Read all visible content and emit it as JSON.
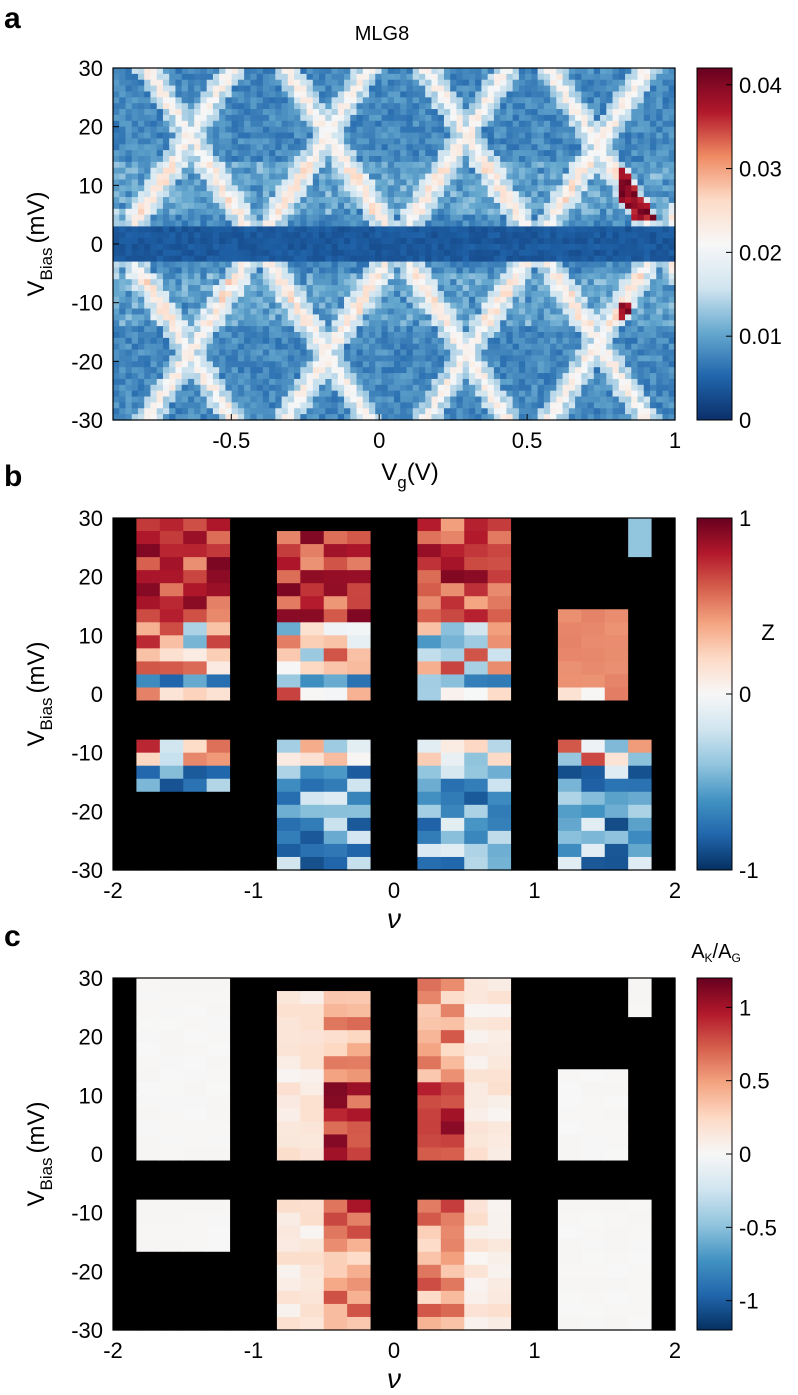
{
  "chart_data": [
    {
      "panel": "a",
      "type": "heatmap",
      "title": "MLG8",
      "xlabel_main": "V",
      "xlabel_sub": "g",
      "xlabel_unit": "(V)",
      "ylabel_main": "V",
      "ylabel_sub": "Bias",
      "ylabel_unit": "(mV)",
      "xlim": [
        -0.9,
        1.0
      ],
      "ylim": [
        -30,
        30
      ],
      "xticks": [
        -0.5,
        0,
        0.5,
        1
      ],
      "xtick_labels": [
        "-0.5",
        "0",
        "0.5",
        "1"
      ],
      "yticks": [
        30,
        20,
        10,
        0,
        -10,
        -20,
        -30
      ],
      "ytick_labels": [
        "30",
        "20",
        "10",
        "0",
        "-10",
        "-20",
        "-30"
      ],
      "colorbar": {
        "range": [
          0,
          0.042
        ],
        "ticks": [
          0.04,
          0.03,
          0.02,
          0.01,
          0
        ],
        "tick_labels": [
          "0.04",
          "0.03",
          "0.02",
          "0.01",
          "0"
        ],
        "colormap": [
          "#0b2f6b",
          "#2166ac",
          "#67a9cf",
          "#d1e5f0",
          "#f7f7f7",
          "#fddbc7",
          "#ef8a62",
          "#b2182b",
          "#67001f"
        ]
      },
      "features": {
        "charge_transition_vg": [
          -0.87,
          -0.41,
          0.06,
          0.53,
          0.95
        ],
        "gap_half_width_mV": 3,
        "background_value": 0.008,
        "edge_value": 0.02,
        "hotspot_value": 0.042
      }
    },
    {
      "panel": "b",
      "type": "heatmap",
      "xlabel": "ν",
      "ylabel_main": "V",
      "ylabel_sub": "Bias",
      "ylabel_unit": "(mV)",
      "xlim": [
        -2,
        2
      ],
      "ylim": [
        -30,
        30
      ],
      "xticks": [
        -2,
        -1,
        0,
        1,
        2
      ],
      "xtick_labels": [
        "-2",
        "-1",
        "0",
        "1",
        "2"
      ],
      "yticks": [
        30,
        20,
        10,
        0,
        -10,
        -20,
        -30
      ],
      "ytick_labels": [
        "30",
        "20",
        "10",
        "0",
        "-10",
        "-20",
        "-30"
      ],
      "colorbar": {
        "label": "Z",
        "range": [
          -1,
          1
        ],
        "ticks": [
          1,
          0,
          -1
        ],
        "tick_labels": [
          "1",
          "0",
          "-1"
        ],
        "colormap": [
          "#053061",
          "#2166ac",
          "#4393c3",
          "#92c5de",
          "#d1e5f0",
          "#f7f7f7",
          "#fddbc7",
          "#f4a582",
          "#d6604d",
          "#b2182b",
          "#67001f"
        ]
      },
      "grid_columns": 24,
      "grid_rows": 27,
      "nan_color": "#000000",
      "regions": [
        {
          "x": [
            -1.85,
            -1.15
          ],
          "y": [
            30,
            0
          ]
        },
        {
          "x": [
            -1.85,
            -1.15
          ],
          "y": [
            -8,
            -17
          ]
        },
        {
          "x": [
            -0.85,
            -0.15
          ],
          "y": [
            28,
            0
          ]
        },
        {
          "x": [
            -0.85,
            -0.15
          ],
          "y": [
            -8,
            -30
          ]
        },
        {
          "x": [
            0.15,
            0.85
          ],
          "y": [
            30,
            0
          ]
        },
        {
          "x": [
            0.15,
            0.85
          ],
          "y": [
            -8,
            -30
          ]
        },
        {
          "x": [
            1.15,
            1.6
          ],
          "y": [
            14,
            0
          ]
        },
        {
          "x": [
            1.15,
            1.75
          ],
          "y": [
            -8,
            -30
          ]
        },
        {
          "x": [
            1.6,
            1.75
          ],
          "y": [
            30,
            24
          ]
        }
      ]
    },
    {
      "panel": "c",
      "type": "heatmap",
      "xlabel": "ν",
      "ylabel_main": "V",
      "ylabel_sub": "Bias",
      "ylabel_unit": "(mV)",
      "xlim": [
        -2,
        2
      ],
      "ylim": [
        -30,
        30
      ],
      "xticks": [
        -2,
        -1,
        0,
        1,
        2
      ],
      "xtick_labels": [
        "-2",
        "-1",
        "0",
        "1",
        "2"
      ],
      "yticks": [
        30,
        20,
        10,
        0,
        -10,
        -20,
        -30
      ],
      "ytick_labels": [
        "30",
        "20",
        "10",
        "0",
        "-10",
        "-20",
        "-30"
      ],
      "colorbar": {
        "label_main": "A",
        "label_sub1": "K",
        "label_mid": "/A",
        "label_sub2": "G",
        "range": [
          -1.2,
          1.2
        ],
        "ticks": [
          1,
          0.5,
          0,
          -0.5,
          -1
        ],
        "tick_labels": [
          "1",
          "0.5",
          "0",
          "-0.5",
          "-1"
        ],
        "colormap": [
          "#053061",
          "#2166ac",
          "#4393c3",
          "#92c5de",
          "#d1e5f0",
          "#f7f7f7",
          "#fddbc7",
          "#f4a582",
          "#d6604d",
          "#b2182b",
          "#67001f"
        ]
      },
      "grid_columns": 24,
      "grid_rows": 27,
      "nan_color": "#000000"
    }
  ]
}
